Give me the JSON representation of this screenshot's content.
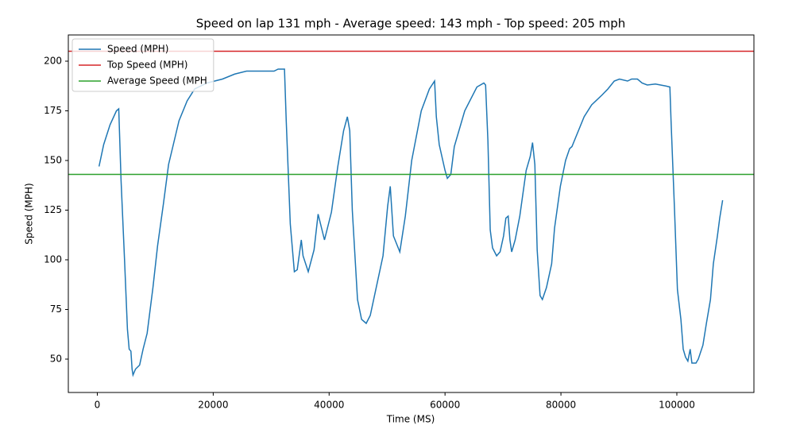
{
  "chart_data": {
    "type": "line",
    "title": "Speed on lap 131 mph - Average speed: 143 mph - Top speed: 205 mph",
    "x_label": "Time (MS)",
    "y_label": "Speed (MPH)",
    "x": [
      300,
      1100,
      2200,
      3300,
      3700,
      4100,
      4700,
      5200,
      5500,
      5800,
      6000,
      6160,
      6600,
      7300,
      7900,
      8600,
      9600,
      10400,
      11400,
      12300,
      13200,
      14100,
      15500,
      16800,
      18900,
      21600,
      23700,
      25750,
      30500,
      31200,
      32300,
      32600,
      33300,
      34000,
      34500,
      35200,
      35500,
      36400,
      37400,
      38100,
      39200,
      40400,
      41500,
      42500,
      43150,
      43560,
      44000,
      44900,
      45600,
      46400,
      47100,
      49300,
      50100,
      50550,
      51100,
      52200,
      53150,
      54250,
      55900,
      57300,
      58200,
      58500,
      59000,
      60000,
      60400,
      61000,
      61600,
      63400,
      65500,
      66700,
      67000,
      67400,
      67800,
      68200,
      68900,
      69500,
      70100,
      70500,
      70900,
      71200,
      71500,
      72100,
      72900,
      74000,
      74700,
      75100,
      75500,
      75900,
      76400,
      76800,
      77500,
      78400,
      78900,
      79900,
      80800,
      81500,
      81900,
      82600,
      84000,
      85300,
      87100,
      88100,
      89200,
      90100,
      91500,
      92200,
      93200,
      94000,
      94900,
      96300,
      98100,
      98800,
      99000,
      99600,
      100100,
      100700,
      101100,
      101500,
      101900,
      102300,
      102600,
      103300,
      103700,
      104500,
      105100,
      105800,
      106300,
      107000,
      107400,
      107900
    ],
    "series": [
      {
        "name": "Speed (MPH)",
        "color": "#1f77b4",
        "values": [
          147,
          158,
          168,
          175,
          176,
          140,
          100,
          65,
          55,
          54,
          45,
          42,
          45,
          47,
          55,
          63,
          86,
          107,
          128,
          148,
          159,
          170,
          180,
          186,
          189,
          191,
          193.5,
          195,
          195,
          196,
          196,
          170,
          118,
          94,
          95,
          110,
          102,
          94,
          105,
          123,
          110,
          124,
          147,
          165,
          172,
          165,
          125,
          80,
          70,
          68,
          72,
          102,
          127,
          137,
          112,
          104,
          122,
          150,
          175,
          186,
          190,
          172,
          158,
          145,
          141,
          143,
          157,
          175,
          187,
          189,
          188,
          160,
          115,
          106,
          102,
          104,
          112,
          121,
          122,
          110,
          104,
          110,
          122,
          145,
          152,
          159,
          148,
          105,
          82,
          80,
          86,
          98,
          116,
          137,
          150,
          156,
          157,
          162,
          172,
          178,
          183,
          186,
          190,
          191,
          190,
          191,
          191,
          189,
          188,
          188.5,
          187.5,
          187,
          170,
          125,
          85,
          70,
          55,
          51,
          49,
          55,
          48,
          48,
          50,
          57,
          68,
          80,
          98,
          112,
          121,
          130
        ]
      }
    ],
    "hlines": [
      {
        "name": "Top Speed (MPH)",
        "color": "#d62728",
        "value": 205
      },
      {
        "name": "Average Speed (MPH",
        "color": "#2ca02c",
        "value": 143
      }
    ],
    "xlim": [
      -5000,
      113300
    ],
    "ylim": [
      33.2,
      213.2
    ],
    "xticks": [
      0,
      20000,
      40000,
      60000,
      80000,
      100000
    ],
    "yticks": [
      50,
      75,
      100,
      125,
      150,
      175,
      200
    ],
    "legend": "upper left"
  }
}
